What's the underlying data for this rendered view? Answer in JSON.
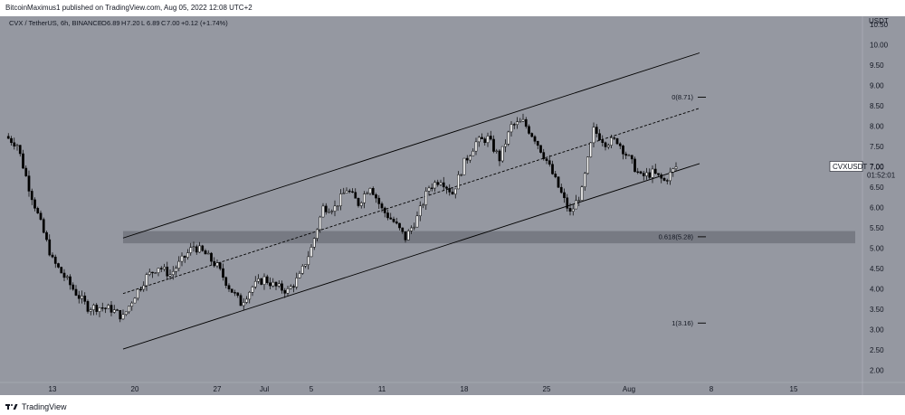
{
  "header": {
    "published": "BitcoinMaximus1 published on TradingView.com, Aug 05, 2022 12:08 UTC+2"
  },
  "footer": {
    "brand": "TradingView"
  },
  "colors": {
    "background": "#9598a1",
    "candle_up": "#ffffff",
    "candle_down": "#000000",
    "zone": "#6d7079"
  },
  "chart_data": {
    "type": "candlestick",
    "legend": {
      "symbol": "CVX / TetherUS, 6h, BINANCE",
      "o_label": "O",
      "o": "6.89",
      "h_label": "H",
      "h": "7.20",
      "l_label": "L",
      "l": "6.89",
      "c_label": "C",
      "c": "7.00",
      "change": "+0.12 (+1.74%)"
    },
    "price_axis": {
      "currency": "USDT",
      "ticks": [
        "2.00",
        "2.50",
        "3.00",
        "3.50",
        "4.00",
        "4.50",
        "5.00",
        "5.50",
        "6.00",
        "6.50",
        "7.00",
        "7.50",
        "8.00",
        "8.50",
        "9.00",
        "9.50",
        "10.00",
        "10.50"
      ],
      "range": [
        1.7,
        10.7
      ],
      "current_label": "CVXUSDT",
      "current_price": "7.00",
      "countdown": "01:52:01"
    },
    "time_axis": {
      "labels": [
        "13",
        "20",
        "27",
        "Jul",
        "5",
        "11",
        "18",
        "25",
        "Aug",
        "8",
        "15"
      ]
    },
    "fib_levels": [
      {
        "label": "0(8.71)",
        "price": 8.71
      },
      {
        "label": "0.618(5.28)",
        "price": 5.28
      },
      {
        "label": "1(3.16)",
        "price": 3.16
      }
    ],
    "support_zone": {
      "low": 5.12,
      "high": 5.42
    },
    "channel": {
      "upper": [
        [
          "Jun 19",
          5.25
        ],
        [
          "Aug 7",
          9.8
        ]
      ],
      "lower": [
        [
          "Jun 19",
          2.52
        ],
        [
          "Aug 7",
          7.08
        ]
      ]
    },
    "price_path": [
      [
        "Jun 9",
        7.75
      ],
      [
        "Jun 10",
        7.55
      ],
      [
        "Jun 11",
        6.5
      ],
      [
        "Jun 12",
        5.6
      ],
      [
        "Jun 13",
        4.7
      ],
      [
        "Jun 14",
        4.3
      ],
      [
        "Jun 15",
        3.9
      ],
      [
        "Jun 16",
        3.55
      ],
      [
        "Jun 17",
        3.55
      ],
      [
        "Jun 18",
        3.5
      ],
      [
        "Jun 19",
        3.3
      ],
      [
        "Jun 20",
        3.85
      ],
      [
        "Jun 21",
        4.3
      ],
      [
        "Jun 22",
        4.55
      ],
      [
        "Jun 23",
        4.35
      ],
      [
        "Jun 24",
        4.7
      ],
      [
        "Jun 25",
        5.05
      ],
      [
        "Jun 26",
        4.85
      ],
      [
        "Jun 27",
        4.55
      ],
      [
        "Jun 28",
        4.05
      ],
      [
        "Jun 29",
        3.65
      ],
      [
        "Jun 30",
        4.05
      ],
      [
        "Jul 1",
        4.25
      ],
      [
        "Jul 2",
        4.05
      ],
      [
        "Jul 3",
        3.95
      ],
      [
        "Jul 4",
        4.3
      ],
      [
        "Jul 5",
        5.0
      ],
      [
        "Jul 6",
        6.0
      ],
      [
        "Jul 7",
        6.0
      ],
      [
        "Jul 8",
        6.45
      ],
      [
        "Jul 9",
        6.1
      ],
      [
        "Jul 10",
        6.55
      ],
      [
        "Jul 11",
        5.95
      ],
      [
        "Jul 12",
        5.65
      ],
      [
        "Jul 13",
        5.25
      ],
      [
        "Jul 14",
        5.75
      ],
      [
        "Jul 15",
        6.5
      ],
      [
        "Jul 16",
        6.7
      ],
      [
        "Jul 17",
        6.35
      ],
      [
        "Jul 18",
        7.1
      ],
      [
        "Jul 19",
        7.6
      ],
      [
        "Jul 20",
        7.7
      ],
      [
        "Jul 21",
        7.2
      ],
      [
        "Jul 22",
        8.0
      ],
      [
        "Jul 23",
        8.1
      ],
      [
        "Jul 24",
        7.7
      ],
      [
        "Jul 25",
        7.15
      ],
      [
        "Jul 26",
        6.5
      ],
      [
        "Jul 27",
        5.85
      ],
      [
        "Jul 28",
        6.4
      ],
      [
        "Jul 29",
        7.9
      ],
      [
        "Jul 30",
        7.6
      ],
      [
        "Jul 31",
        7.65
      ],
      [
        "Aug 1",
        7.2
      ],
      [
        "Aug 2",
        6.75
      ],
      [
        "Aug 3",
        6.85
      ],
      [
        "Aug 4",
        6.65
      ],
      [
        "Aug 5",
        7.0
      ]
    ]
  }
}
